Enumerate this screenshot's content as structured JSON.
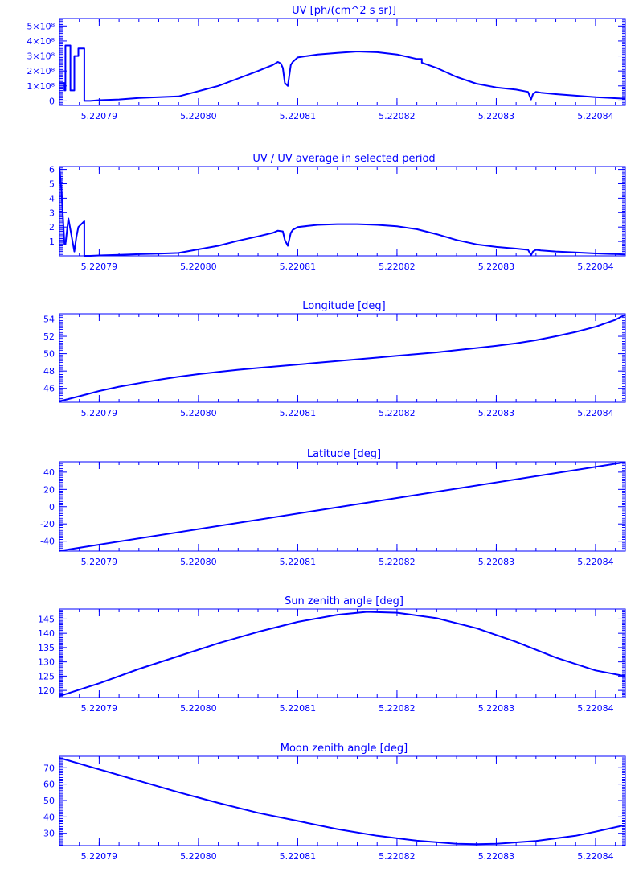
{
  "x_tick_labels": [
    "5.22079",
    "5.22080",
    "5.22081",
    "5.22082",
    "5.22083",
    "5.22084"
  ],
  "colors": {
    "line": "#0000ff",
    "background": "#ffffff"
  },
  "chart_data": [
    {
      "type": "line",
      "title": "UV [ph/(cm^2 s sr)]",
      "xlim": [
        5.220786,
        5.220843
      ],
      "ylim": [
        -0.3,
        5.5
      ],
      "y_unit_factor": "10^8",
      "y_ticks": [
        0,
        1,
        2,
        3,
        4,
        5
      ],
      "y_tick_labels": [
        "0",
        "1×10⁸",
        "2×10⁸",
        "3×10⁸",
        "4×10⁸",
        "5×10⁸"
      ],
      "series": [
        {
          "x": [
            5.220786,
            5.2207865,
            5.2207865,
            5.2207866,
            5.2207866,
            5.2207871,
            5.2207871,
            5.2207875,
            5.2207875,
            5.2207879,
            5.2207879,
            5.2207885,
            5.2207885,
            5.2207891,
            5.22079,
            5.220792,
            5.220794,
            5.220796,
            5.220798,
            5.2208,
            5.220802,
            5.220804,
            5.220806,
            5.2208075,
            5.220808,
            5.2208083,
            5.2208085,
            5.2208087,
            5.220809,
            5.2208093,
            5.2208095,
            5.22081,
            5.220812,
            5.220814,
            5.220816,
            5.220818,
            5.22082,
            5.220822,
            5.2208225,
            5.2208225,
            5.220824,
            5.220826,
            5.220828,
            5.22083,
            5.220832,
            5.2208332,
            5.2208335,
            5.2208337,
            5.220834,
            5.2208345,
            5.220836,
            5.220838,
            5.22084,
            5.220843
          ],
          "y": [
            1.2,
            1.2,
            0.7,
            0.7,
            3.7,
            3.7,
            0.7,
            0.7,
            3.0,
            3.0,
            3.5,
            3.5,
            0.0,
            0.0,
            0.05,
            0.1,
            0.2,
            0.25,
            0.3,
            0.65,
            1.0,
            1.5,
            2.0,
            2.4,
            2.6,
            2.5,
            2.2,
            1.2,
            1.0,
            2.4,
            2.6,
            2.9,
            3.1,
            3.2,
            3.3,
            3.25,
            3.1,
            2.8,
            2.8,
            2.55,
            2.2,
            1.6,
            1.15,
            0.9,
            0.75,
            0.6,
            0.1,
            0.45,
            0.6,
            0.55,
            0.45,
            0.35,
            0.25,
            0.15
          ]
        }
      ]
    },
    {
      "type": "line",
      "title": "UV / UV average in selected period",
      "xlim": [
        5.220786,
        5.220843
      ],
      "ylim": [
        0,
        6.2
      ],
      "y_ticks": [
        1,
        2,
        3,
        4,
        5,
        6
      ],
      "y_tick_labels": [
        "1",
        "2",
        "3",
        "4",
        "5",
        "6"
      ],
      "series": [
        {
          "x": [
            5.220786,
            5.2207862,
            5.2207865,
            5.2207866,
            5.2207869,
            5.2207875,
            5.2207877,
            5.2207879,
            5.2207885,
            5.2207885,
            5.2207891,
            5.22079,
            5.220792,
            5.220794,
            5.220796,
            5.220798,
            5.2208,
            5.220802,
            5.220804,
            5.220806,
            5.2208075,
            5.220808,
            5.2208085,
            5.2208087,
            5.220809,
            5.2208093,
            5.2208095,
            5.22081,
            5.220812,
            5.220814,
            5.220816,
            5.220818,
            5.22082,
            5.220822,
            5.220824,
            5.220826,
            5.220828,
            5.22083,
            5.220832,
            5.2208332,
            5.2208335,
            5.2208337,
            5.220834,
            5.2208345,
            5.220836,
            5.220838,
            5.22084,
            5.220843
          ],
          "y": [
            6.1,
            4.5,
            0.8,
            0.8,
            2.6,
            0.3,
            1.3,
            2.0,
            2.4,
            0.0,
            0.0,
            0.03,
            0.07,
            0.12,
            0.15,
            0.2,
            0.45,
            0.7,
            1.05,
            1.35,
            1.6,
            1.75,
            1.7,
            1.1,
            0.7,
            1.6,
            1.8,
            2.0,
            2.15,
            2.2,
            2.2,
            2.15,
            2.05,
            1.85,
            1.5,
            1.1,
            0.8,
            0.62,
            0.5,
            0.42,
            0.05,
            0.3,
            0.42,
            0.38,
            0.3,
            0.24,
            0.17,
            0.1
          ]
        }
      ]
    },
    {
      "type": "line",
      "title": "Longitude [deg]",
      "xlim": [
        5.220786,
        5.220843
      ],
      "ylim": [
        44.4,
        54.6
      ],
      "y_ticks": [
        46,
        48,
        50,
        52,
        54
      ],
      "y_tick_labels": [
        "46",
        "48",
        "50",
        "52",
        "54"
      ],
      "series": [
        {
          "x": [
            5.220786,
            5.220788,
            5.22079,
            5.220792,
            5.220794,
            5.220796,
            5.220798,
            5.2208,
            5.220802,
            5.220804,
            5.220806,
            5.220808,
            5.22081,
            5.220812,
            5.220814,
            5.220816,
            5.220818,
            5.22082,
            5.220822,
            5.220824,
            5.220826,
            5.220828,
            5.22083,
            5.220832,
            5.220834,
            5.220836,
            5.220838,
            5.22084,
            5.220842,
            5.220843
          ],
          "y": [
            44.5,
            45.1,
            45.7,
            46.2,
            46.6,
            47.0,
            47.35,
            47.65,
            47.9,
            48.15,
            48.35,
            48.55,
            48.75,
            48.95,
            49.15,
            49.35,
            49.55,
            49.75,
            49.95,
            50.15,
            50.4,
            50.65,
            50.9,
            51.2,
            51.55,
            52.0,
            52.5,
            53.1,
            53.9,
            54.5
          ]
        }
      ]
    },
    {
      "type": "line",
      "title": "Latitude [deg]",
      "xlim": [
        5.220786,
        5.220843
      ],
      "ylim": [
        -51.5,
        52
      ],
      "y_ticks": [
        -40,
        -20,
        0,
        20,
        40
      ],
      "y_tick_labels": [
        "-40",
        "-20",
        "0",
        "20",
        "40"
      ],
      "series": [
        {
          "x": [
            5.220786,
            5.220843
          ],
          "y": [
            -51.2,
            51.5
          ]
        }
      ]
    },
    {
      "type": "line",
      "title": "Sun zenith angle [deg]",
      "xlim": [
        5.220786,
        5.220843
      ],
      "ylim": [
        117.5,
        148.5
      ],
      "y_ticks": [
        120,
        125,
        130,
        135,
        140,
        145
      ],
      "y_tick_labels": [
        "120",
        "125",
        "130",
        "135",
        "140",
        "145"
      ],
      "series": [
        {
          "x": [
            5.220786,
            5.22079,
            5.220794,
            5.220798,
            5.220802,
            5.220806,
            5.22081,
            5.220814,
            5.220817,
            5.22082,
            5.220824,
            5.220828,
            5.220832,
            5.220836,
            5.22084,
            5.220843
          ],
          "y": [
            118.0,
            122.5,
            127.5,
            132.0,
            136.5,
            140.5,
            144.0,
            146.5,
            147.5,
            147.2,
            145.3,
            141.8,
            137.0,
            131.5,
            127.0,
            125.0
          ]
        }
      ]
    },
    {
      "type": "line",
      "title": "Moon zenith angle [deg]",
      "xlim": [
        5.220786,
        5.220843
      ],
      "ylim": [
        22.5,
        77
      ],
      "y_ticks": [
        30,
        40,
        50,
        60,
        70
      ],
      "y_tick_labels": [
        "30",
        "40",
        "50",
        "60",
        "70"
      ],
      "series": [
        {
          "x": [
            5.220786,
            5.22079,
            5.220794,
            5.220798,
            5.220802,
            5.220806,
            5.22081,
            5.220814,
            5.220818,
            5.220822,
            5.220826,
            5.220828,
            5.22083,
            5.220834,
            5.220838,
            5.22084,
            5.220843
          ],
          "y": [
            76.0,
            69.0,
            62.0,
            55.0,
            48.5,
            42.5,
            37.5,
            32.5,
            28.5,
            25.5,
            23.6,
            23.4,
            23.6,
            25.3,
            28.5,
            31.0,
            35.0
          ]
        }
      ]
    }
  ]
}
